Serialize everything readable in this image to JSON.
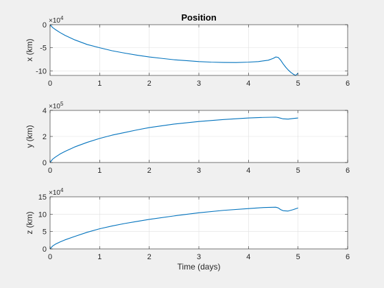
{
  "figure": {
    "background": "#f0f0f0",
    "axes_background": "#ffffff",
    "line_color": "#0072bd",
    "grid_color": "#dfdfdf"
  },
  "chart_data": [
    {
      "type": "line",
      "title": "Position",
      "xlabel": "",
      "ylabel": "x (km)",
      "xlim": [
        0,
        6
      ],
      "ylim": [
        -11,
        0
      ],
      "xticks": [
        "0",
        "1",
        "2",
        "3",
        "4",
        "5",
        "6"
      ],
      "yticks": [
        {
          "v": 0,
          "label": "0"
        },
        {
          "v": -5,
          "label": "-5"
        },
        {
          "v": -10,
          "label": "-10"
        }
      ],
      "exponent": {
        "base": "×10",
        "power": "4"
      },
      "grid": true,
      "series": [
        {
          "x": [
            0,
            0.05,
            0.1,
            0.2,
            0.3,
            0.5,
            0.75,
            1.0,
            1.25,
            1.5,
            1.75,
            2.0,
            2.25,
            2.5,
            2.75,
            3.0,
            3.25,
            3.5,
            3.75,
            4.0,
            4.2,
            4.4,
            4.5,
            4.55,
            4.6,
            4.65,
            4.7,
            4.75,
            4.8,
            4.85,
            4.9,
            4.95,
            5.0
          ],
          "y": [
            0,
            -0.6,
            -1.0,
            -1.7,
            -2.3,
            -3.3,
            -4.3,
            -5.0,
            -5.65,
            -6.15,
            -6.6,
            -7.0,
            -7.3,
            -7.6,
            -7.8,
            -8.0,
            -8.12,
            -8.18,
            -8.2,
            -8.12,
            -8.0,
            -7.7,
            -7.3,
            -7.0,
            -7.1,
            -7.7,
            -8.5,
            -9.2,
            -9.8,
            -10.3,
            -10.7,
            -11.0,
            -10.5
          ]
        }
      ]
    },
    {
      "type": "line",
      "title": "",
      "xlabel": "",
      "ylabel": "y (km)",
      "xlim": [
        0,
        6
      ],
      "ylim": [
        0,
        4
      ],
      "xticks": [
        "0",
        "1",
        "2",
        "3",
        "4",
        "5",
        "6"
      ],
      "yticks": [
        {
          "v": 0,
          "label": "0"
        },
        {
          "v": 2,
          "label": "2"
        },
        {
          "v": 4,
          "label": "4"
        }
      ],
      "exponent": {
        "base": "×10",
        "power": "5"
      },
      "grid": true,
      "series": [
        {
          "x": [
            0,
            0.05,
            0.1,
            0.2,
            0.3,
            0.5,
            0.75,
            1.0,
            1.25,
            1.5,
            1.75,
            2.0,
            2.5,
            3.0,
            3.5,
            4.0,
            4.3,
            4.55,
            4.6,
            4.7,
            4.8,
            4.9,
            5.0
          ],
          "y": [
            0,
            0.25,
            0.4,
            0.65,
            0.85,
            1.2,
            1.55,
            1.85,
            2.1,
            2.3,
            2.5,
            2.68,
            2.95,
            3.15,
            3.3,
            3.42,
            3.46,
            3.48,
            3.45,
            3.35,
            3.33,
            3.38,
            3.42
          ]
        }
      ]
    },
    {
      "type": "line",
      "title": "",
      "xlabel": "Time (days)",
      "ylabel": "z (km)",
      "xlim": [
        0,
        6
      ],
      "ylim": [
        0,
        15
      ],
      "xticks": [
        "0",
        "1",
        "2",
        "3",
        "4",
        "5",
        "6"
      ],
      "yticks": [
        {
          "v": 0,
          "label": "0"
        },
        {
          "v": 5,
          "label": "5"
        },
        {
          "v": 10,
          "label": "10"
        },
        {
          "v": 15,
          "label": "15"
        }
      ],
      "exponent": {
        "base": "×10",
        "power": "4"
      },
      "grid": true,
      "series": [
        {
          "x": [
            0,
            0.05,
            0.1,
            0.2,
            0.3,
            0.5,
            0.75,
            1.0,
            1.25,
            1.5,
            1.75,
            2.0,
            2.5,
            3.0,
            3.5,
            4.0,
            4.3,
            4.55,
            4.6,
            4.65,
            4.7,
            4.8,
            4.9,
            5.0
          ],
          "y": [
            0,
            0.8,
            1.3,
            2.0,
            2.6,
            3.6,
            4.8,
            5.8,
            6.6,
            7.3,
            7.9,
            8.5,
            9.5,
            10.4,
            11.1,
            11.6,
            11.9,
            12.0,
            11.8,
            11.3,
            11.0,
            10.9,
            11.3,
            11.8
          ]
        }
      ]
    }
  ]
}
